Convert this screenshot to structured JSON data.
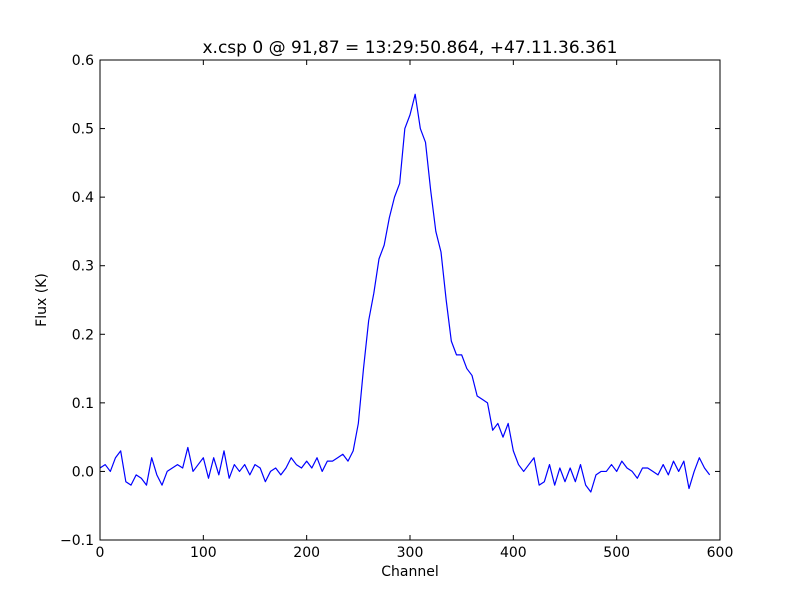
{
  "chart_data": {
    "type": "line",
    "title": "x.csp 0 @ 91,87 = 13:29:50.864, +47.11.36.361",
    "x_label": "Channel",
    "y_label": "Flux (K)",
    "x": [
      0,
      5,
      10,
      15,
      20,
      25,
      30,
      35,
      40,
      45,
      50,
      55,
      60,
      65,
      70,
      75,
      80,
      85,
      90,
      95,
      100,
      105,
      110,
      115,
      120,
      125,
      130,
      135,
      140,
      145,
      150,
      155,
      160,
      165,
      170,
      175,
      180,
      185,
      190,
      195,
      200,
      205,
      210,
      215,
      220,
      225,
      230,
      235,
      240,
      245,
      250,
      255,
      260,
      265,
      270,
      275,
      280,
      285,
      290,
      295,
      300,
      305,
      310,
      315,
      320,
      325,
      330,
      335,
      340,
      345,
      350,
      355,
      360,
      365,
      370,
      375,
      380,
      385,
      390,
      395,
      400,
      405,
      410,
      415,
      420,
      425,
      430,
      435,
      440,
      445,
      450,
      455,
      460,
      465,
      470,
      475,
      480,
      485,
      490,
      495,
      500,
      505,
      510,
      515,
      520,
      525,
      530,
      535,
      540,
      545,
      550,
      555,
      560,
      565,
      570,
      575,
      580,
      585,
      590
    ],
    "series": [
      {
        "name": "spectrum",
        "color": "#0000ff",
        "values": [
          0.005,
          0.01,
          0.0,
          0.02,
          0.03,
          -0.015,
          -0.02,
          -0.005,
          -0.01,
          -0.02,
          0.02,
          -0.005,
          -0.02,
          0.0,
          0.005,
          0.01,
          0.005,
          0.035,
          0.0,
          0.01,
          0.02,
          -0.01,
          0.02,
          -0.005,
          0.03,
          -0.01,
          0.01,
          0.0,
          0.01,
          -0.005,
          0.01,
          0.005,
          -0.015,
          0.0,
          0.005,
          -0.005,
          0.005,
          0.02,
          0.01,
          0.005,
          0.015,
          0.005,
          0.02,
          0.0,
          0.015,
          0.015,
          0.02,
          0.025,
          0.015,
          0.03,
          0.07,
          0.15,
          0.22,
          0.26,
          0.31,
          0.33,
          0.37,
          0.4,
          0.42,
          0.5,
          0.52,
          0.55,
          0.5,
          0.48,
          0.41,
          0.35,
          0.32,
          0.25,
          0.19,
          0.17,
          0.17,
          0.15,
          0.14,
          0.11,
          0.105,
          0.1,
          0.06,
          0.07,
          0.05,
          0.07,
          0.03,
          0.01,
          0.0,
          0.01,
          0.02,
          -0.02,
          -0.015,
          0.01,
          -0.02,
          0.005,
          -0.015,
          0.005,
          -0.015,
          0.01,
          -0.02,
          -0.03,
          -0.005,
          0.0,
          0.0,
          0.01,
          0.0,
          0.015,
          0.005,
          0.0,
          -0.01,
          0.005,
          0.005,
          0.0,
          -0.005,
          0.01,
          -0.005,
          0.015,
          0.0,
          0.015,
          -0.025,
          0.0,
          0.02,
          0.005,
          -0.005
        ]
      }
    ],
    "xlim": [
      0,
      600
    ],
    "xticks": [
      0,
      100,
      200,
      300,
      400,
      500,
      600
    ],
    "ylim": [
      -0.1,
      0.6
    ],
    "yticks": [
      {
        "value": -0.1,
        "label": "−0.1"
      },
      {
        "value": 0.0,
        "label": "0.0"
      },
      {
        "value": 0.1,
        "label": "0.1"
      },
      {
        "value": 0.2,
        "label": "0.2"
      },
      {
        "value": 0.3,
        "label": "0.3"
      },
      {
        "value": 0.4,
        "label": "0.4"
      },
      {
        "value": 0.5,
        "label": "0.5"
      },
      {
        "value": 0.6,
        "label": "0.6"
      }
    ],
    "grid": false
  }
}
